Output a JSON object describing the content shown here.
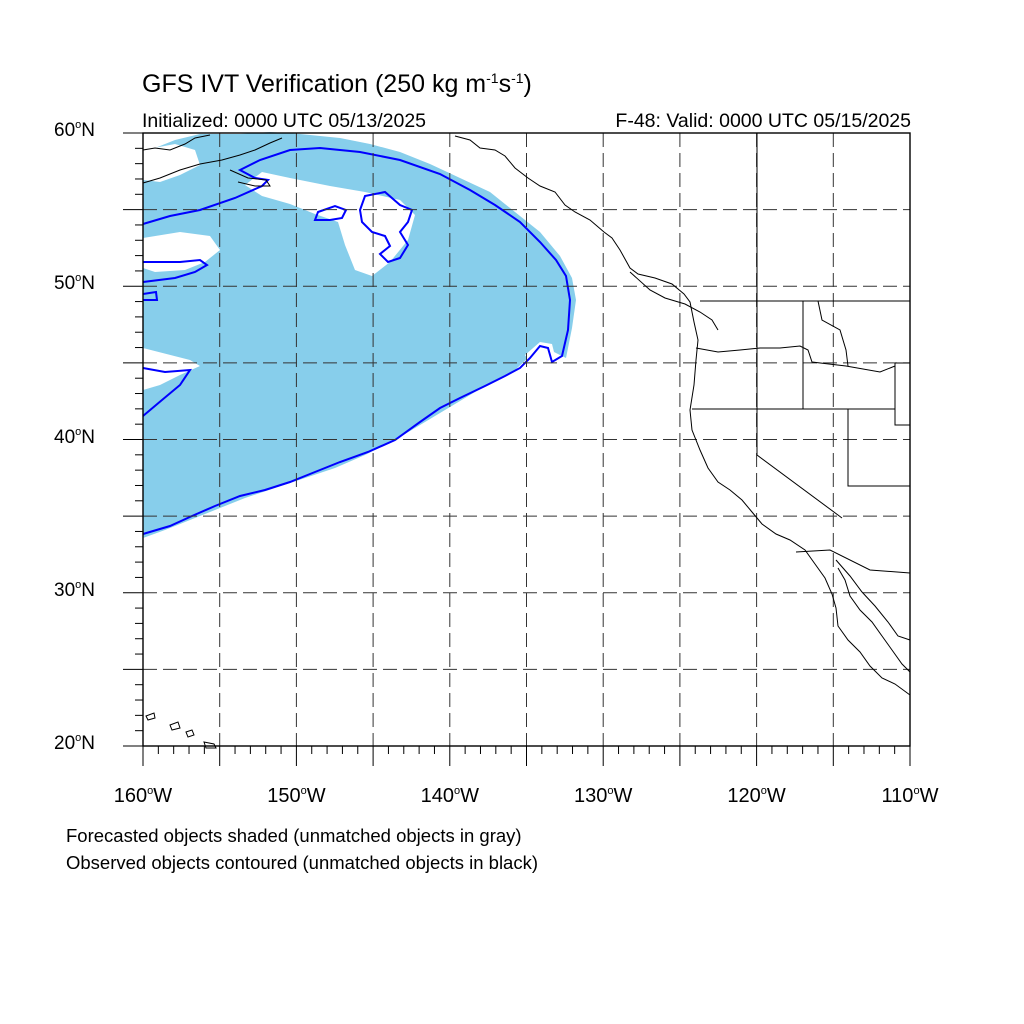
{
  "title_main": "GFS IVT Verification (250 kg m",
  "title_exp1": "-1",
  "title_mid": "s",
  "title_exp2": "-1",
  "title_end": ")",
  "initialized": "Initialized: 0000 UTC 05/13/2025",
  "valid": "F-48: Valid: 0000 UTC 05/15/2025",
  "lat_ticks": [
    {
      "value": "60",
      "hemi": "N",
      "lat": 60
    },
    {
      "value": "50",
      "hemi": "N",
      "lat": 50
    },
    {
      "value": "40",
      "hemi": "N",
      "lat": 40
    },
    {
      "value": "30",
      "hemi": "N",
      "lat": 30
    },
    {
      "value": "20",
      "hemi": "N",
      "lat": 20
    }
  ],
  "lon_ticks": [
    {
      "value": "160",
      "hemi": "W",
      "lon": -160
    },
    {
      "value": "150",
      "hemi": "W",
      "lon": -150
    },
    {
      "value": "140",
      "hemi": "W",
      "lon": -140
    },
    {
      "value": "130",
      "hemi": "W",
      "lon": -130
    },
    {
      "value": "120",
      "hemi": "W",
      "lon": -120
    },
    {
      "value": "110",
      "hemi": "W",
      "lon": -110
    }
  ],
  "notes": [
    "Forecasted objects shaded (unmatched objects in gray)",
    "Observed objects contoured (unmatched objects in black)"
  ],
  "colors": {
    "forecast_shading": "#87ceeb",
    "observed_contour": "#0000ff",
    "coastline": "#000000",
    "grid": "#333333"
  },
  "map_extent": {
    "lon_min": -160,
    "lon_max": -110,
    "lat_min": 20,
    "lat_max": 60
  },
  "grid_lines": {
    "lons": [
      -155,
      -150,
      -145,
      -140,
      -135,
      -130,
      -125,
      -120,
      -115
    ],
    "lats": [
      25,
      30,
      35,
      40,
      45,
      50,
      55
    ]
  }
}
